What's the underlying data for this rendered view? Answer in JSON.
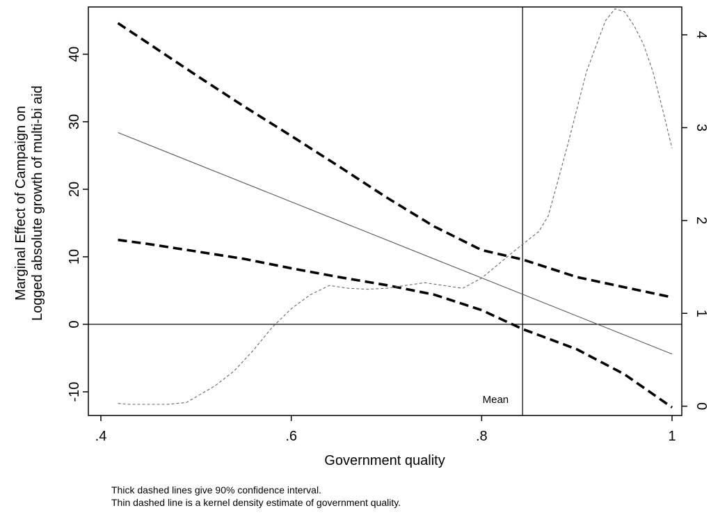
{
  "chart_data": {
    "type": "line",
    "xlabel": "Government quality",
    "ylabel_line1": "Marginal Effect of Campaign on",
    "ylabel_line2": "Logged absolute growth of multi-bi aid",
    "xlim": [
      0.4,
      1.0
    ],
    "ylim_left": [
      -13.5,
      47
    ],
    "ylim_right": [
      -0.1,
      4.3
    ],
    "x_ticks": [
      {
        "v": 0.4,
        "label": ".4"
      },
      {
        "v": 0.6,
        "label": ".6"
      },
      {
        "v": 0.8,
        "label": ".8"
      },
      {
        "v": 1.0,
        "label": "1"
      }
    ],
    "y_ticks_left": [
      {
        "v": -10,
        "label": "-10"
      },
      {
        "v": 0,
        "label": "0"
      },
      {
        "v": 10,
        "label": "10"
      },
      {
        "v": 20,
        "label": "20"
      },
      {
        "v": 30,
        "label": "30"
      },
      {
        "v": 40,
        "label": "40"
      }
    ],
    "y_ticks_right": [
      {
        "v": 0,
        "label": "0"
      },
      {
        "v": 1,
        "label": "1"
      },
      {
        "v": 2,
        "label": "2"
      },
      {
        "v": 3,
        "label": "3"
      },
      {
        "v": 4,
        "label": "4"
      }
    ],
    "mean_x": 0.843,
    "mean_label": "Mean",
    "series": [
      {
        "role": "marginal_effect",
        "axis": "left",
        "style": "thin-solid",
        "x": [
          0.418,
          1.0
        ],
        "y": [
          28.4,
          -4.4
        ]
      },
      {
        "role": "ci_upper",
        "axis": "left",
        "style": "thick-dashed",
        "x": [
          0.418,
          0.45,
          0.5,
          0.55,
          0.6,
          0.65,
          0.7,
          0.75,
          0.8,
          0.843,
          0.9,
          0.95,
          1.0
        ],
        "y": [
          44.6,
          41.6,
          36.9,
          32.3,
          27.9,
          23.4,
          18.8,
          14.5,
          11.0,
          9.6,
          7.0,
          5.5,
          4.0
        ]
      },
      {
        "role": "ci_lower",
        "axis": "left",
        "style": "thick-dashed",
        "x": [
          0.418,
          0.45,
          0.5,
          0.55,
          0.6,
          0.65,
          0.7,
          0.75,
          0.8,
          0.843,
          0.9,
          0.95,
          1.0
        ],
        "y": [
          12.5,
          11.9,
          10.8,
          9.7,
          8.3,
          7.0,
          5.8,
          4.4,
          2.1,
          -0.7,
          -3.7,
          -7.4,
          -12.3
        ]
      },
      {
        "role": "kernel_density",
        "axis": "right",
        "style": "thin-dashed",
        "x": [
          0.418,
          0.43,
          0.45,
          0.47,
          0.49,
          0.5,
          0.52,
          0.54,
          0.56,
          0.58,
          0.6,
          0.62,
          0.64,
          0.66,
          0.68,
          0.7,
          0.72,
          0.74,
          0.76,
          0.78,
          0.8,
          0.82,
          0.84,
          0.86,
          0.87,
          0.89,
          0.91,
          0.93,
          0.94,
          0.95,
          0.96,
          0.97,
          0.98,
          0.99,
          1.0
        ],
        "y": [
          0.03,
          0.02,
          0.02,
          0.02,
          0.04,
          0.1,
          0.22,
          0.38,
          0.6,
          0.85,
          1.05,
          1.2,
          1.3,
          1.27,
          1.26,
          1.27,
          1.3,
          1.33,
          1.3,
          1.27,
          1.38,
          1.55,
          1.72,
          1.88,
          2.05,
          2.8,
          3.6,
          4.15,
          4.28,
          4.25,
          4.1,
          3.9,
          3.6,
          3.2,
          2.78
        ]
      }
    ]
  },
  "notes": {
    "line1": "Thick dashed lines give 90% confidence interval.",
    "line2": "Thin dashed line is a kernel density estimate of government quality."
  }
}
